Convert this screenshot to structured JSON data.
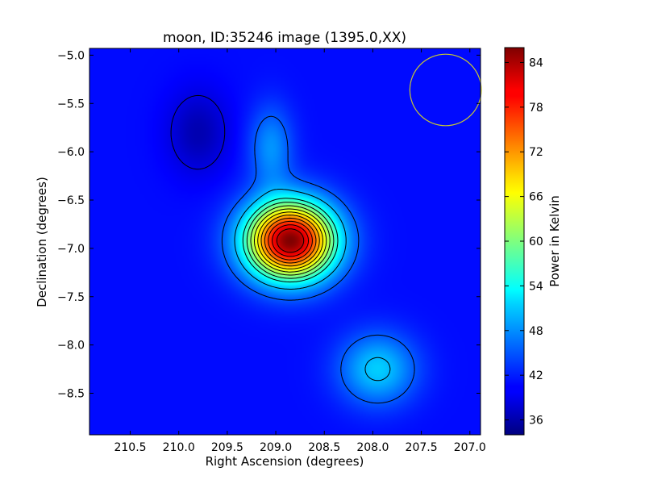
{
  "chart_data": {
    "type": "heatmap",
    "title": "moon, ID:35246 image (1395.0,XX)",
    "xlabel": "Right Ascension (degrees)",
    "ylabel": "Declination (degrees)",
    "xlim": [
      210.92,
      206.89
    ],
    "ylim": [
      -8.93,
      -4.93
    ],
    "x_ticks": [
      210.5,
      210.0,
      209.5,
      209.0,
      208.5,
      208.0,
      207.5,
      207.0
    ],
    "x_tick_labels": [
      "210.5",
      "210.0",
      "209.5",
      "209.0",
      "208.5",
      "208.0",
      "207.5",
      "207.0"
    ],
    "y_ticks": [
      -5.0,
      -5.5,
      -6.0,
      -6.5,
      -7.0,
      -7.5,
      -8.0,
      -8.5
    ],
    "y_tick_labels": [
      "−5.0",
      "−5.5",
      "−6.0",
      "−6.5",
      "−7.0",
      "−7.5",
      "−8.0",
      "−8.5"
    ],
    "colorbar": {
      "label": "Power in Kelvin",
      "range": [
        34.0,
        86.0
      ],
      "ticks": [
        36,
        42,
        48,
        54,
        60,
        66,
        72,
        78,
        84
      ],
      "tick_labels": [
        "36",
        "42",
        "48",
        "54",
        "60",
        "66",
        "72",
        "78",
        "84"
      ],
      "colormap": "jet"
    },
    "background_level": 41.0,
    "sources": [
      {
        "ra": 208.85,
        "dec": -6.92,
        "peak": 86.0,
        "sigma_ra": 0.32,
        "sigma_dec": 0.28
      },
      {
        "ra": 209.05,
        "dec": -5.95,
        "peak": 48.0,
        "sigma_ra": 0.16,
        "sigma_dec": 0.3
      },
      {
        "ra": 207.95,
        "dec": -8.25,
        "peak": 51.0,
        "sigma_ra": 0.28,
        "sigma_dec": 0.26
      },
      {
        "ra": 209.8,
        "dec": -5.8,
        "peak": 36.5,
        "sigma_ra": 0.22,
        "sigma_dec": 0.3
      }
    ],
    "contour_levels": [
      39,
      45,
      50,
      55,
      58,
      61,
      64,
      67,
      70,
      73,
      76,
      79,
      82
    ],
    "beam_circle": {
      "ra": 207.25,
      "dec": -5.36,
      "radius_dec": 0.37,
      "color": "#c8c832"
    },
    "grid": false
  }
}
